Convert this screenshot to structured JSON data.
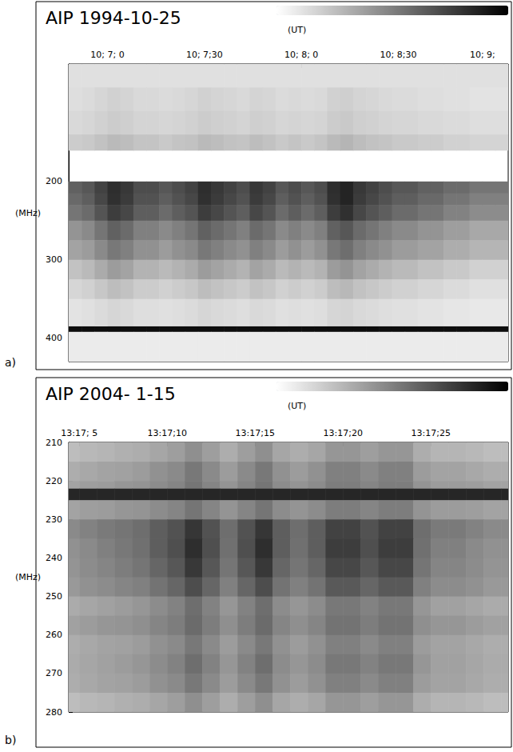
{
  "chart_data": [
    {
      "type": "heatmap",
      "panel_label": "a)",
      "title": "AIP 1994-10-25",
      "x_label": "(UT)",
      "y_label": "(MHz)",
      "xlim": [
        36408,
        36544
      ],
      "xticks": [
        {
          "value": 36420,
          "label": "10; 7; 0"
        },
        {
          "value": 36450,
          "label": "10; 7;30"
        },
        {
          "value": 36480,
          "label": "10; 8; 0"
        },
        {
          "value": 36510,
          "label": "10; 8;30"
        },
        {
          "value": 36540,
          "label": "10; 9;"
        }
      ],
      "ylim": [
        50,
        430
      ],
      "yticks": [
        200,
        300,
        400
      ],
      "grid": false,
      "zlim": [
        0,
        1
      ],
      "x_edges": [
        36408,
        36412,
        36416,
        36420,
        36424,
        36428,
        36432,
        36436,
        36440,
        36444,
        36448,
        36452,
        36456,
        36460,
        36464,
        36468,
        36472,
        36476,
        36480,
        36484,
        36488,
        36492,
        36496,
        36500,
        36504,
        36508,
        36512,
        36516,
        36520,
        36524,
        36528,
        36532,
        36536,
        36540,
        36544
      ],
      "y_edges": [
        50,
        80,
        110,
        140,
        160,
        200,
        215,
        230,
        250,
        275,
        300,
        325,
        350,
        385,
        392,
        430
      ],
      "cells": [
        [
          0.12,
          0.12,
          0.12,
          0.12,
          0.12,
          0.12,
          0.12,
          0.12,
          0.12,
          0.12,
          0.12,
          0.12,
          0.12,
          0.12,
          0.12,
          0.12,
          0.12,
          0.12,
          0.12,
          0.12,
          0.12,
          0.12,
          0.12,
          0.12,
          0.12,
          0.12,
          0.12,
          0.12,
          0.12,
          0.12,
          0.12,
          0.12,
          0.12,
          0.12
        ],
        [
          0.13,
          0.14,
          0.16,
          0.18,
          0.17,
          0.15,
          0.15,
          0.14,
          0.15,
          0.16,
          0.18,
          0.17,
          0.16,
          0.15,
          0.17,
          0.16,
          0.14,
          0.15,
          0.14,
          0.15,
          0.18,
          0.19,
          0.17,
          0.16,
          0.15,
          0.14,
          0.14,
          0.13,
          0.13,
          0.12,
          0.12,
          0.11,
          0.11,
          0.11
        ],
        [
          0.15,
          0.16,
          0.18,
          0.2,
          0.19,
          0.17,
          0.17,
          0.16,
          0.17,
          0.18,
          0.2,
          0.19,
          0.18,
          0.17,
          0.19,
          0.18,
          0.16,
          0.17,
          0.16,
          0.17,
          0.2,
          0.21,
          0.19,
          0.18,
          0.17,
          0.16,
          0.16,
          0.15,
          0.15,
          0.14,
          0.14,
          0.13,
          0.13,
          0.13
        ],
        [
          0.2,
          0.21,
          0.24,
          0.27,
          0.26,
          0.23,
          0.23,
          0.21,
          0.23,
          0.24,
          0.27,
          0.26,
          0.24,
          0.23,
          0.26,
          0.24,
          0.21,
          0.23,
          0.21,
          0.23,
          0.27,
          0.29,
          0.26,
          0.24,
          0.23,
          0.21,
          0.21,
          0.2,
          0.2,
          0.18,
          0.18,
          0.17,
          0.17,
          0.17
        ],
        [
          null,
          null,
          null,
          null,
          null,
          null,
          null,
          null,
          null,
          null,
          null,
          null,
          null,
          null,
          null,
          null,
          null,
          null,
          null,
          null,
          null,
          null,
          null,
          null,
          null,
          null,
          null,
          null,
          null,
          null,
          null,
          null,
          null,
          null
        ],
        [
          0.62,
          0.66,
          0.74,
          0.82,
          0.78,
          0.7,
          0.7,
          0.66,
          0.7,
          0.74,
          0.82,
          0.78,
          0.74,
          0.7,
          0.78,
          0.74,
          0.66,
          0.7,
          0.66,
          0.7,
          0.82,
          0.86,
          0.78,
          0.74,
          0.7,
          0.66,
          0.66,
          0.62,
          0.62,
          0.58,
          0.58,
          0.54,
          0.54,
          0.54
        ],
        [
          0.59,
          0.63,
          0.72,
          0.81,
          0.77,
          0.68,
          0.68,
          0.63,
          0.68,
          0.72,
          0.81,
          0.77,
          0.72,
          0.68,
          0.77,
          0.72,
          0.63,
          0.68,
          0.63,
          0.68,
          0.81,
          0.86,
          0.77,
          0.72,
          0.68,
          0.63,
          0.63,
          0.59,
          0.59,
          0.54,
          0.54,
          0.5,
          0.5,
          0.5
        ],
        [
          0.54,
          0.58,
          0.67,
          0.76,
          0.72,
          0.63,
          0.63,
          0.58,
          0.63,
          0.67,
          0.76,
          0.72,
          0.67,
          0.63,
          0.72,
          0.67,
          0.58,
          0.63,
          0.58,
          0.63,
          0.76,
          0.81,
          0.72,
          0.67,
          0.63,
          0.58,
          0.58,
          0.54,
          0.54,
          0.49,
          0.49,
          0.45,
          0.45,
          0.45
        ],
        [
          0.42,
          0.46,
          0.54,
          0.62,
          0.58,
          0.5,
          0.5,
          0.46,
          0.5,
          0.54,
          0.62,
          0.58,
          0.54,
          0.5,
          0.58,
          0.54,
          0.46,
          0.5,
          0.46,
          0.5,
          0.62,
          0.66,
          0.58,
          0.54,
          0.5,
          0.46,
          0.46,
          0.42,
          0.42,
          0.38,
          0.38,
          0.34,
          0.34,
          0.34
        ],
        [
          0.36,
          0.39,
          0.46,
          0.53,
          0.5,
          0.43,
          0.43,
          0.39,
          0.43,
          0.46,
          0.53,
          0.5,
          0.46,
          0.43,
          0.5,
          0.46,
          0.39,
          0.43,
          0.39,
          0.43,
          0.53,
          0.57,
          0.5,
          0.46,
          0.43,
          0.39,
          0.39,
          0.36,
          0.36,
          0.32,
          0.32,
          0.29,
          0.29,
          0.29
        ],
        [
          0.24,
          0.27,
          0.33,
          0.39,
          0.36,
          0.3,
          0.3,
          0.27,
          0.3,
          0.33,
          0.39,
          0.36,
          0.33,
          0.3,
          0.36,
          0.33,
          0.27,
          0.3,
          0.27,
          0.3,
          0.39,
          0.42,
          0.36,
          0.33,
          0.3,
          0.27,
          0.27,
          0.24,
          0.24,
          0.21,
          0.21,
          0.18,
          0.18,
          0.18
        ],
        [
          0.16,
          0.18,
          0.22,
          0.26,
          0.24,
          0.2,
          0.2,
          0.18,
          0.2,
          0.22,
          0.26,
          0.24,
          0.22,
          0.2,
          0.24,
          0.22,
          0.18,
          0.2,
          0.18,
          0.2,
          0.26,
          0.28,
          0.24,
          0.22,
          0.2,
          0.18,
          0.18,
          0.16,
          0.16,
          0.14,
          0.14,
          0.12,
          0.12,
          0.12
        ],
        [
          0.11,
          0.12,
          0.14,
          0.16,
          0.15,
          0.13,
          0.13,
          0.12,
          0.13,
          0.14,
          0.16,
          0.15,
          0.14,
          0.13,
          0.15,
          0.14,
          0.12,
          0.13,
          0.12,
          0.13,
          0.16,
          0.17,
          0.15,
          0.14,
          0.13,
          0.12,
          0.12,
          0.11,
          0.11,
          0.1,
          0.1,
          0.09,
          0.09,
          0.09
        ],
        [
          0.95,
          0.95,
          0.95,
          0.95,
          0.95,
          0.95,
          0.95,
          0.95,
          0.95,
          0.95,
          0.95,
          0.95,
          0.95,
          0.95,
          0.95,
          0.95,
          0.95,
          0.95,
          0.95,
          0.95,
          0.95,
          0.95,
          0.95,
          0.95,
          0.95,
          0.95,
          0.95,
          0.95,
          0.95,
          0.95,
          0.95,
          0.95,
          0.95,
          0.95
        ],
        [
          0.08,
          0.08,
          0.08,
          0.08,
          0.08,
          0.08,
          0.08,
          0.08,
          0.08,
          0.08,
          0.08,
          0.08,
          0.08,
          0.08,
          0.08,
          0.08,
          0.08,
          0.08,
          0.08,
          0.08,
          0.08,
          0.08,
          0.08,
          0.08,
          0.08,
          0.08,
          0.08,
          0.08,
          0.08,
          0.08,
          0.08,
          0.08,
          0.08,
          0.08
        ]
      ]
    },
    {
      "type": "heatmap",
      "panel_label": "b)",
      "title": "AIP 2004- 1-15",
      "x_label": "(UT)",
      "y_label": "(MHz)",
      "xlim": [
        47824.4,
        47849.4
      ],
      "xticks": [
        {
          "value": 47825,
          "label": "13:17; 5"
        },
        {
          "value": 47830,
          "label": "13:17;10"
        },
        {
          "value": 47835,
          "label": "13:17;15"
        },
        {
          "value": 47840,
          "label": "13:17;20"
        },
        {
          "value": 47845,
          "label": "13:17;25"
        }
      ],
      "ylim": [
        210,
        280
      ],
      "yticks": [
        210,
        220,
        230,
        240,
        250,
        260,
        270,
        280
      ],
      "grid": false,
      "zlim": [
        0,
        1
      ],
      "x_edges": [
        47824,
        47825,
        47826,
        47827,
        47828,
        47829,
        47830,
        47831,
        47832,
        47833,
        47834,
        47835,
        47836,
        47837,
        47838,
        47839,
        47840,
        47841,
        47842,
        47843,
        47844,
        47845,
        47846,
        47847,
        47848,
        47849,
        47850
      ],
      "y_edges": [
        210,
        215,
        220,
        222,
        225,
        230,
        235,
        240,
        245,
        250,
        255,
        260,
        265,
        270,
        275,
        280
      ],
      "cells": [
        [
          0.26,
          0.28,
          0.29,
          0.31,
          0.32,
          0.35,
          0.38,
          0.44,
          0.38,
          0.32,
          0.38,
          0.44,
          0.35,
          0.32,
          0.35,
          0.41,
          0.41,
          0.38,
          0.41,
          0.41,
          0.32,
          0.29,
          0.29,
          0.28,
          0.26,
          0.26
        ],
        [
          0.32,
          0.34,
          0.36,
          0.37,
          0.39,
          0.43,
          0.46,
          0.53,
          0.46,
          0.39,
          0.46,
          0.53,
          0.43,
          0.39,
          0.43,
          0.5,
          0.5,
          0.46,
          0.5,
          0.5,
          0.39,
          0.36,
          0.36,
          0.34,
          0.32,
          0.32
        ],
        [
          0.36,
          0.38,
          0.39,
          0.41,
          0.42,
          0.45,
          0.48,
          0.54,
          0.48,
          0.42,
          0.48,
          0.54,
          0.45,
          0.42,
          0.45,
          0.51,
          0.51,
          0.48,
          0.51,
          0.51,
          0.42,
          0.39,
          0.39,
          0.38,
          0.36,
          0.36
        ],
        [
          0.85,
          0.85,
          0.85,
          0.85,
          0.85,
          0.85,
          0.85,
          0.85,
          0.85,
          0.85,
          0.85,
          0.85,
          0.85,
          0.85,
          0.85,
          0.85,
          0.85,
          0.85,
          0.85,
          0.85,
          0.85,
          0.85,
          0.85,
          0.85,
          0.85,
          0.85
        ],
        [
          0.36,
          0.38,
          0.39,
          0.41,
          0.42,
          0.45,
          0.48,
          0.54,
          0.48,
          0.42,
          0.48,
          0.54,
          0.45,
          0.42,
          0.45,
          0.51,
          0.51,
          0.48,
          0.51,
          0.51,
          0.42,
          0.39,
          0.39,
          0.38,
          0.36,
          0.36
        ],
        [
          0.46,
          0.49,
          0.52,
          0.54,
          0.57,
          0.63,
          0.68,
          0.79,
          0.68,
          0.57,
          0.68,
          0.79,
          0.63,
          0.57,
          0.63,
          0.74,
          0.74,
          0.68,
          0.74,
          0.74,
          0.57,
          0.52,
          0.52,
          0.49,
          0.46,
          0.46
        ],
        [
          0.43,
          0.46,
          0.5,
          0.53,
          0.56,
          0.63,
          0.69,
          0.82,
          0.69,
          0.56,
          0.69,
          0.82,
          0.63,
          0.56,
          0.63,
          0.76,
          0.76,
          0.69,
          0.76,
          0.76,
          0.56,
          0.5,
          0.5,
          0.46,
          0.43,
          0.43
        ],
        [
          0.42,
          0.45,
          0.48,
          0.51,
          0.54,
          0.6,
          0.66,
          0.78,
          0.66,
          0.54,
          0.66,
          0.78,
          0.6,
          0.54,
          0.6,
          0.72,
          0.72,
          0.66,
          0.72,
          0.72,
          0.54,
          0.48,
          0.48,
          0.45,
          0.42,
          0.42
        ],
        [
          0.4,
          0.43,
          0.45,
          0.48,
          0.5,
          0.55,
          0.6,
          0.7,
          0.6,
          0.5,
          0.6,
          0.7,
          0.55,
          0.5,
          0.55,
          0.65,
          0.65,
          0.6,
          0.65,
          0.65,
          0.5,
          0.45,
          0.45,
          0.43,
          0.4,
          0.4
        ],
        [
          0.33,
          0.35,
          0.37,
          0.39,
          0.41,
          0.45,
          0.49,
          0.57,
          0.49,
          0.41,
          0.49,
          0.57,
          0.45,
          0.41,
          0.45,
          0.53,
          0.53,
          0.49,
          0.53,
          0.53,
          0.41,
          0.37,
          0.37,
          0.35,
          0.33,
          0.33
        ],
        [
          0.37,
          0.39,
          0.41,
          0.42,
          0.44,
          0.48,
          0.51,
          0.58,
          0.51,
          0.44,
          0.51,
          0.58,
          0.48,
          0.44,
          0.48,
          0.55,
          0.55,
          0.51,
          0.55,
          0.55,
          0.44,
          0.41,
          0.41,
          0.39,
          0.37,
          0.37
        ],
        [
          0.32,
          0.34,
          0.36,
          0.37,
          0.39,
          0.43,
          0.46,
          0.53,
          0.46,
          0.39,
          0.46,
          0.53,
          0.43,
          0.39,
          0.43,
          0.5,
          0.5,
          0.46,
          0.5,
          0.5,
          0.39,
          0.36,
          0.36,
          0.34,
          0.32,
          0.32
        ],
        [
          0.33,
          0.35,
          0.37,
          0.39,
          0.41,
          0.45,
          0.49,
          0.57,
          0.49,
          0.41,
          0.49,
          0.57,
          0.45,
          0.41,
          0.45,
          0.53,
          0.53,
          0.49,
          0.53,
          0.53,
          0.41,
          0.37,
          0.37,
          0.35,
          0.33,
          0.33
        ],
        [
          0.32,
          0.34,
          0.36,
          0.37,
          0.39,
          0.43,
          0.46,
          0.53,
          0.46,
          0.39,
          0.46,
          0.53,
          0.43,
          0.39,
          0.43,
          0.5,
          0.5,
          0.46,
          0.5,
          0.5,
          0.39,
          0.36,
          0.36,
          0.34,
          0.32,
          0.32
        ],
        [
          0.26,
          0.28,
          0.29,
          0.31,
          0.32,
          0.35,
          0.38,
          0.44,
          0.38,
          0.32,
          0.38,
          0.44,
          0.35,
          0.32,
          0.35,
          0.41,
          0.41,
          0.38,
          0.41,
          0.41,
          0.32,
          0.29,
          0.29,
          0.28,
          0.26,
          0.26
        ]
      ]
    }
  ]
}
